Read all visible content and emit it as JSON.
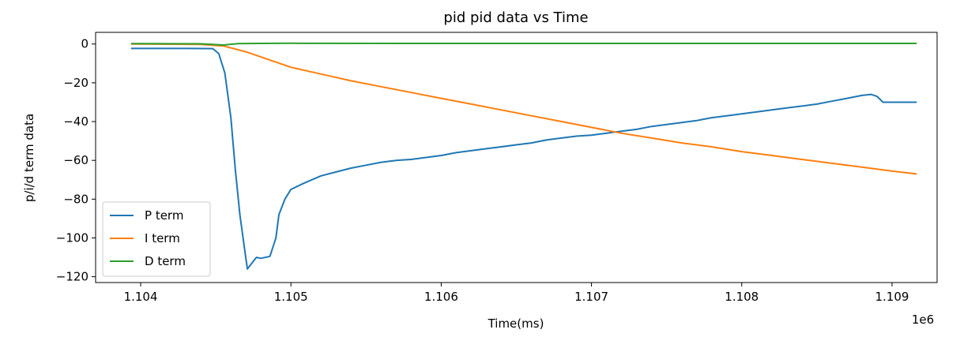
{
  "chart_data": {
    "type": "line",
    "title": "pid pid data vs Time",
    "xlabel": "Time(ms)",
    "ylabel": "p/i/d term data",
    "x_offset_label": "1e6",
    "xlim": [
      1103700,
      1109300
    ],
    "ylim": [
      -123,
      6
    ],
    "x_ticks": [
      1104000,
      1105000,
      1106000,
      1107000,
      1108000,
      1109000
    ],
    "x_tick_labels": [
      "1.104",
      "1.105",
      "1.106",
      "1.107",
      "1.108",
      "1.109"
    ],
    "y_ticks": [
      0,
      -20,
      -40,
      -60,
      -80,
      -100,
      -120
    ],
    "y_tick_labels": [
      "0",
      "−20",
      "−40",
      "−60",
      "−80",
      "−100",
      "−120"
    ],
    "grid": false,
    "legend_position": "lower-left",
    "series": [
      {
        "name": "P term",
        "color": "#1f77b4",
        "points": [
          [
            1103940,
            -2.3
          ],
          [
            1104300,
            -2.3
          ],
          [
            1104480,
            -2.4
          ],
          [
            1104520,
            -5
          ],
          [
            1104560,
            -15
          ],
          [
            1104600,
            -38
          ],
          [
            1104630,
            -65
          ],
          [
            1104660,
            -88
          ],
          [
            1104690,
            -105
          ],
          [
            1104710,
            -116
          ],
          [
            1104740,
            -113
          ],
          [
            1104770,
            -110
          ],
          [
            1104800,
            -110.5
          ],
          [
            1104860,
            -109.5
          ],
          [
            1104900,
            -100
          ],
          [
            1104920,
            -88
          ],
          [
            1104960,
            -80
          ],
          [
            1105000,
            -75
          ],
          [
            1105080,
            -72
          ],
          [
            1105200,
            -68
          ],
          [
            1105300,
            -66
          ],
          [
            1105400,
            -64
          ],
          [
            1105500,
            -62.5
          ],
          [
            1105600,
            -61
          ],
          [
            1105700,
            -60
          ],
          [
            1105800,
            -59.5
          ],
          [
            1105900,
            -58.5
          ],
          [
            1106000,
            -57.5
          ],
          [
            1106100,
            -56
          ],
          [
            1106200,
            -55
          ],
          [
            1106300,
            -54
          ],
          [
            1106400,
            -53
          ],
          [
            1106500,
            -52
          ],
          [
            1106600,
            -51
          ],
          [
            1106700,
            -49.5
          ],
          [
            1106800,
            -48.5
          ],
          [
            1106900,
            -47.5
          ],
          [
            1107000,
            -47
          ],
          [
            1107100,
            -46
          ],
          [
            1107200,
            -45
          ],
          [
            1107300,
            -44
          ],
          [
            1107400,
            -42.5
          ],
          [
            1107500,
            -41.5
          ],
          [
            1107600,
            -40.5
          ],
          [
            1107700,
            -39.5
          ],
          [
            1107800,
            -38
          ],
          [
            1107900,
            -37
          ],
          [
            1108000,
            -36
          ],
          [
            1108100,
            -35
          ],
          [
            1108200,
            -34
          ],
          [
            1108300,
            -33
          ],
          [
            1108400,
            -32
          ],
          [
            1108500,
            -31
          ],
          [
            1108600,
            -29.5
          ],
          [
            1108700,
            -28
          ],
          [
            1108800,
            -26.5
          ],
          [
            1108860,
            -26
          ],
          [
            1108900,
            -27
          ],
          [
            1108940,
            -30
          ],
          [
            1109000,
            -30
          ],
          [
            1109100,
            -30
          ],
          [
            1109160,
            -30
          ]
        ]
      },
      {
        "name": "I term",
        "color": "#ff7f0e",
        "points": [
          [
            1103940,
            0
          ],
          [
            1104400,
            -0.2
          ],
          [
            1104550,
            -1
          ],
          [
            1104700,
            -4
          ],
          [
            1104850,
            -8
          ],
          [
            1105000,
            -12
          ],
          [
            1105200,
            -15.5
          ],
          [
            1105400,
            -19
          ],
          [
            1105600,
            -22
          ],
          [
            1105800,
            -25
          ],
          [
            1106000,
            -28
          ],
          [
            1106200,
            -31
          ],
          [
            1106400,
            -34
          ],
          [
            1106600,
            -37
          ],
          [
            1106800,
            -40
          ],
          [
            1107000,
            -43
          ],
          [
            1107200,
            -46
          ],
          [
            1107400,
            -48.5
          ],
          [
            1107600,
            -51
          ],
          [
            1107800,
            -53
          ],
          [
            1108000,
            -55.5
          ],
          [
            1108200,
            -57.5
          ],
          [
            1108400,
            -59.5
          ],
          [
            1108600,
            -61.5
          ],
          [
            1108800,
            -63.5
          ],
          [
            1109000,
            -65.5
          ],
          [
            1109160,
            -67
          ]
        ]
      },
      {
        "name": "D term",
        "color": "#2ca02c",
        "points": [
          [
            1103940,
            0.2
          ],
          [
            1104400,
            0.1
          ],
          [
            1104550,
            -0.5
          ],
          [
            1104650,
            0.2
          ],
          [
            1104800,
            0.3
          ],
          [
            1105000,
            0.4
          ],
          [
            1106000,
            0.3
          ],
          [
            1107000,
            0.3
          ],
          [
            1108000,
            0.3
          ],
          [
            1109160,
            0.3
          ]
        ]
      }
    ]
  }
}
